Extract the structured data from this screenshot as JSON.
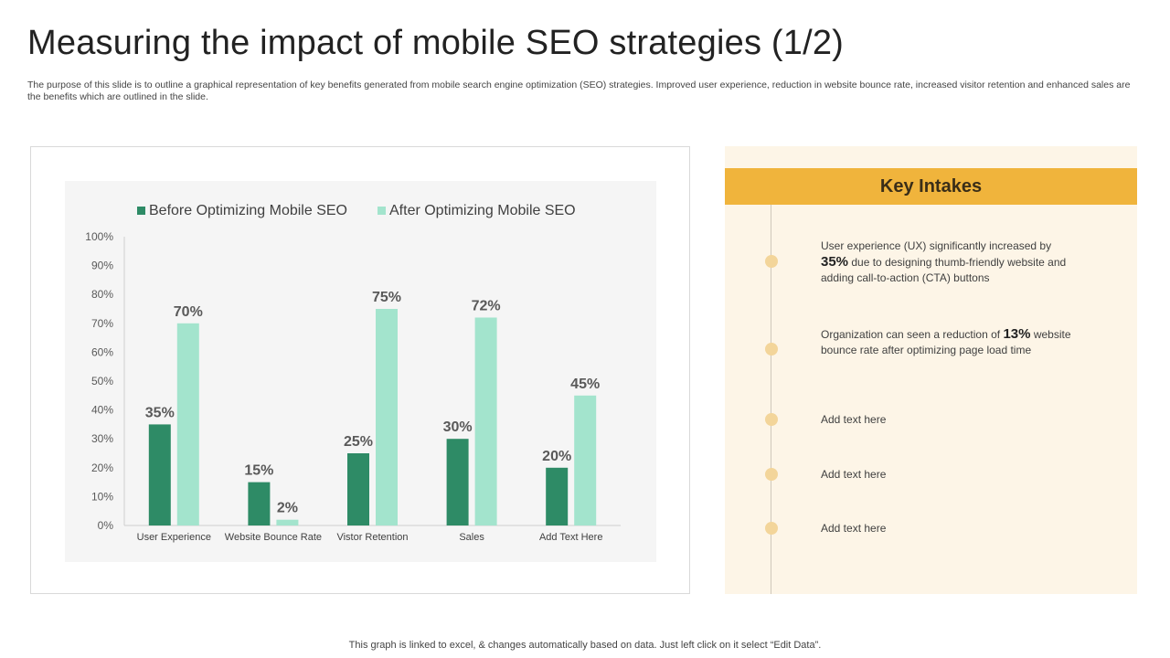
{
  "slide": {
    "title": "Measuring the impact of mobile SEO strategies (1/2)",
    "subtitle": "The purpose of this slide is to outline a graphical representation of key benefits generated from mobile search engine optimization (SEO) strategies. Improved user experience, reduction in website bounce rate, increased visitor retention and enhanced sales are the benefits which are outlined in the slide.",
    "footer": "This graph is linked to excel, & changes automatically based on data. Just left click on it select “Edit Data”."
  },
  "colors": {
    "before": "#2e8b66",
    "after": "#a3e4cd",
    "accent": "#f0b43c",
    "panel_bg": "#fdf5e7",
    "dot": "#f3d59a"
  },
  "chart_data": {
    "type": "bar",
    "title": "",
    "xlabel": "",
    "ylabel": "",
    "ylim": [
      0,
      100
    ],
    "yticks": [
      "0%",
      "10%",
      "20%",
      "30%",
      "40%",
      "50%",
      "60%",
      "70%",
      "80%",
      "90%",
      "100%"
    ],
    "categories": [
      "User Experience",
      "Website Bounce Rate",
      "Vistor Retention",
      "Sales",
      "Add Text Here"
    ],
    "series": [
      {
        "name": "Before Optimizing Mobile SEO",
        "values": [
          35,
          15,
          25,
          30,
          20
        ],
        "labels": [
          "35%",
          "15%",
          "25%",
          "30%",
          "20%"
        ]
      },
      {
        "name": "After Optimizing Mobile SEO",
        "values": [
          70,
          2,
          75,
          72,
          45
        ],
        "labels": [
          "70%",
          "2%",
          "75%",
          "72%",
          "45%"
        ]
      }
    ],
    "legend": "top"
  },
  "key_intakes": {
    "header": "Key Intakes",
    "items": [
      {
        "pre": "User experience (UX) significantly increased by ",
        "highlight": "35%",
        "post": " due to designing thumb-friendly website and adding call-to-action (CTA) buttons"
      },
      {
        "pre": "Organization can seen a reduction of ",
        "highlight": "13%",
        "post": " website bounce rate after optimizing page load time"
      },
      {
        "pre": "Add text here",
        "highlight": "",
        "post": ""
      },
      {
        "pre": "Add text here",
        "highlight": "",
        "post": ""
      },
      {
        "pre": "Add text here",
        "highlight": "",
        "post": ""
      }
    ]
  }
}
